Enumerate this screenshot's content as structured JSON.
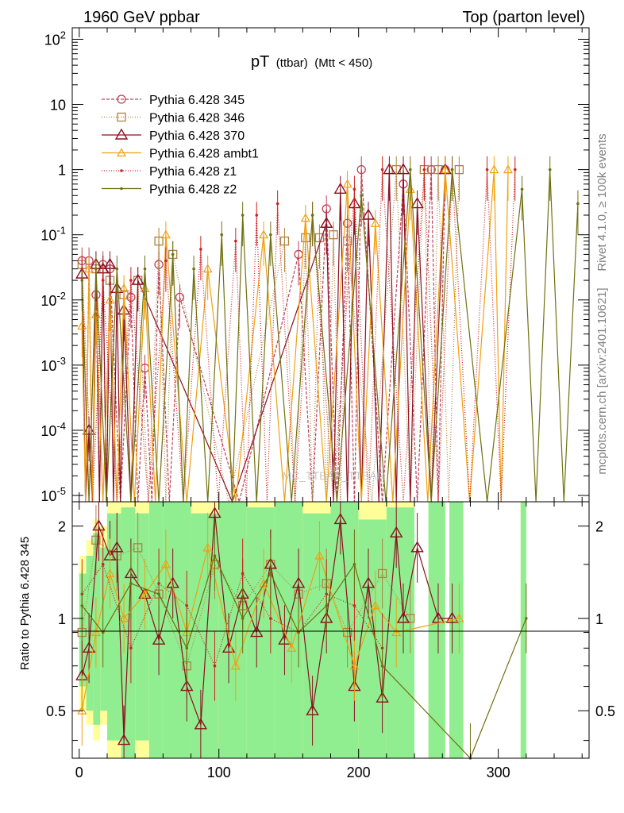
{
  "header": {
    "left": "1960 GeV ppbar",
    "right": "Top (parton level)"
  },
  "title": {
    "main": "pT",
    "sub": "(ttbar)",
    "cut": "(Mtt < 450)"
  },
  "side_labels": {
    "rivet": "Rivet 4.1.0, ≥ 100k events",
    "mcplots": "mcplots.cern.ch [arXiv:2401.10621]"
  },
  "watermark": "MC_TTBAR_TTBAR",
  "ratio_ylabel": "Ratio to Pythia 6.428 345",
  "colors": {
    "p345": "#c0415a",
    "p346": "#b08040",
    "p370": "#8b1020",
    "ambt1": "#f0a010",
    "z1": "#d02020",
    "z2": "#707010",
    "band_green": "#90ee90",
    "band_yellow": "#ffff99"
  },
  "chart_data": {
    "type": "line",
    "x_axis": {
      "range": [
        -5,
        365
      ],
      "ticks": [
        0,
        100,
        200,
        300
      ],
      "tick_labels": [
        "0",
        "100",
        "200",
        "300"
      ]
    },
    "main_panel": {
      "scale": "log",
      "ylim": [
        8e-06,
        150
      ],
      "ticks": [
        1e-05,
        0.0001,
        0.001,
        0.01,
        0.1,
        1,
        10,
        100
      ],
      "tick_labels": [
        "10^-5",
        "10^-4",
        "10^-3",
        "10^-2",
        "10^-1",
        "1",
        "10",
        "10^2"
      ]
    },
    "ratio_panel": {
      "scale": "log",
      "ylim": [
        0.35,
        2.4
      ],
      "ticks": [
        0.5,
        1,
        2
      ],
      "tick_labels": [
        "0.5",
        "1",
        "2"
      ]
    },
    "legend": [
      {
        "label": "Pythia 6.428 345",
        "key": "p345",
        "marker": "circle",
        "dash": "4,2"
      },
      {
        "label": "Pythia 6.428 346",
        "key": "p346",
        "marker": "square",
        "dash": "1,2"
      },
      {
        "label": "Pythia 6.428 370",
        "key": "p370",
        "marker": "triangle",
        "dash": ""
      },
      {
        "label": "Pythia 6.428 ambt1",
        "key": "ambt1",
        "marker": "triangle-small",
        "dash": ""
      },
      {
        "label": "Pythia 6.428 z1",
        "key": "z1",
        "marker": "dot",
        "dash": "1,2"
      },
      {
        "label": "Pythia 6.428 z2",
        "key": "z2",
        "marker": "dot",
        "dash": ""
      }
    ],
    "series": [
      {
        "name": "Pythia 6.428 345",
        "key": "p345",
        "x": [
          2,
          7,
          12,
          17,
          22,
          37,
          47,
          57,
          72,
          157,
          177,
          192,
          202,
          232,
          252,
          262
        ],
        "y": [
          0.04,
          0.04,
          0.012,
          0.035,
          0.03,
          0.011,
          0.0009,
          0.035,
          0.011,
          0.05,
          0.25,
          0.15,
          1,
          0.6,
          1,
          1
        ]
      },
      {
        "name": "Pythia 6.428 346",
        "key": "p346",
        "x": [
          2,
          12,
          22,
          32,
          42,
          57,
          67,
          147,
          162,
          172,
          182,
          192,
          227,
          247,
          257,
          272
        ],
        "y": [
          0.035,
          0.03,
          0.02,
          0.012,
          0.02,
          0.08,
          0.05,
          0.08,
          0.09,
          0.09,
          0.1,
          0.08,
          1,
          1,
          1,
          1
        ]
      },
      {
        "name": "Pythia 6.428 370",
        "key": "p370",
        "x": [
          2,
          7,
          12,
          17,
          22,
          27,
          32,
          42,
          177,
          187,
          197,
          207,
          222,
          232,
          242,
          262
        ],
        "y": [
          0.025,
          0.0001,
          0.035,
          0.03,
          0.035,
          0.015,
          0.007,
          0.02,
          0.15,
          0.5,
          0.3,
          0.2,
          1,
          1,
          0.3,
          1
        ]
      },
      {
        "name": "Pythia 6.428 ambt1",
        "key": "ambt1",
        "x": [
          2,
          7,
          12,
          22,
          32,
          47,
          62,
          92,
          132,
          162,
          192,
          212,
          237,
          262,
          297,
          307
        ],
        "y": [
          0.004,
          0.03,
          0.006,
          0.01,
          0.015,
          0.015,
          0.1,
          0.03,
          0.1,
          0.18,
          0.6,
          0.15,
          0.5,
          1,
          1,
          1
        ]
      },
      {
        "name": "Pythia 6.428 z1",
        "key": "z1",
        "x": [
          2,
          17,
          37,
          62,
          87,
          112,
          127,
          142,
          167,
          197,
          217,
          247,
          267,
          292,
          312
        ],
        "y": [
          0.03,
          0.02,
          0.02,
          0.04,
          0.06,
          0.08,
          0.2,
          0.3,
          0.2,
          0.5,
          1,
          1,
          1,
          1,
          1
        ]
      },
      {
        "name": "Pythia 6.428 z2",
        "key": "z2",
        "x": [
          2,
          12,
          27,
          47,
          67,
          82,
          102,
          117,
          137,
          167,
          202,
          237,
          267,
          317,
          337,
          357
        ],
        "y": [
          0.02,
          0.03,
          0.03,
          0.03,
          0.05,
          0.03,
          0.1,
          0.2,
          0.1,
          0.2,
          0.4,
          1,
          1,
          0.5,
          1,
          0.3
        ]
      }
    ],
    "ratio_series": [
      {
        "name": "Pythia 6.428 346",
        "key": "p346",
        "x": [
          2,
          12,
          27,
          42,
          57,
          77,
          97,
          117,
          137,
          157,
          177,
          192,
          217,
          237
        ],
        "y": [
          0.9,
          1.8,
          1.6,
          1.7,
          1.2,
          0.7,
          1.5,
          1.1,
          1.5,
          1.2,
          1.3,
          0.9,
          1.4,
          1
        ]
      },
      {
        "name": "Pythia 6.428 370",
        "key": "p370",
        "x": [
          2,
          7,
          14,
          22,
          27,
          32,
          37,
          47,
          57,
          67,
          77,
          87,
          97,
          107,
          117,
          127,
          137,
          147,
          157,
          167,
          177,
          187,
          197,
          207,
          217,
          227,
          232,
          242,
          257,
          267
        ],
        "y": [
          0.65,
          0.8,
          2.0,
          1.6,
          1.7,
          0.4,
          1.4,
          1.2,
          0.85,
          1.3,
          0.6,
          0.45,
          2.2,
          0.8,
          1.2,
          0.9,
          1.5,
          0.85,
          1.3,
          0.5,
          1.0,
          2.1,
          0.6,
          1.3,
          0.55,
          1.9,
          1.0,
          1.7,
          1.0,
          1.0
        ]
      },
      {
        "name": "Pythia 6.428 ambt1",
        "key": "ambt1",
        "x": [
          2,
          12,
          22,
          32,
          47,
          62,
          77,
          92,
          112,
          132,
          152,
          172,
          197,
          212,
          227,
          272
        ],
        "y": [
          0.5,
          0.9,
          1.4,
          1.0,
          1.2,
          1.5,
          0.9,
          1.7,
          0.7,
          1.3,
          0.8,
          1.6,
          0.7,
          1.1,
          0.9,
          1.0
        ]
      },
      {
        "name": "Pythia 6.428 z1",
        "key": "z1",
        "x": [
          2,
          17,
          37,
          57,
          77,
          97,
          117,
          137,
          157,
          177,
          197,
          217
        ],
        "y": [
          1.2,
          1.5,
          0.8,
          1.3,
          1.1,
          0.7,
          1.4,
          1.0,
          0.9,
          1.2,
          1.1,
          0.8
        ]
      },
      {
        "name": "Pythia 6.428 z2",
        "key": "z2",
        "x": [
          2,
          17,
          37,
          57,
          77,
          97,
          117,
          137,
          157,
          177,
          197,
          217,
          280,
          320
        ],
        "y": [
          1.1,
          0.9,
          1.3,
          1.2,
          0.8,
          1.6,
          1.0,
          1.4,
          0.9,
          1.1,
          1.5,
          0.7,
          0.35,
          1.0
        ]
      }
    ],
    "ratio_bands": [
      {
        "x0": 0,
        "x1": 5,
        "green": [
          0.6,
          1.4
        ],
        "yellow": [
          0.5,
          1.6
        ]
      },
      {
        "x0": 5,
        "x1": 10,
        "green": [
          0.5,
          1.6
        ],
        "yellow": [
          0.45,
          1.8
        ]
      },
      {
        "x0": 10,
        "x1": 15,
        "green": [
          0.45,
          1.9
        ],
        "yellow": [
          0.4,
          2.1
        ]
      },
      {
        "x0": 15,
        "x1": 20,
        "green": [
          0.5,
          1.7
        ],
        "yellow": [
          0.45,
          2.0
        ]
      },
      {
        "x0": 20,
        "x1": 30,
        "green": [
          0.4,
          2.2
        ],
        "yellow": [
          0.35,
          2.4
        ]
      },
      {
        "x0": 30,
        "x1": 40,
        "green": [
          0.35,
          2.3
        ],
        "yellow": [
          0.35,
          2.4
        ]
      },
      {
        "x0": 40,
        "x1": 50,
        "green": [
          0.4,
          2.2
        ],
        "yellow": [
          0.35,
          2.4
        ]
      },
      {
        "x0": 50,
        "x1": 60,
        "green": [
          0.35,
          2.4
        ],
        "yellow": [
          0.35,
          2.4
        ]
      },
      {
        "x0": 60,
        "x1": 80,
        "green": [
          0.35,
          2.4
        ],
        "yellow": [
          0.35,
          2.4
        ]
      },
      {
        "x0": 80,
        "x1": 100,
        "green": [
          0.35,
          2.2
        ],
        "yellow": [
          0.35,
          2.4
        ]
      },
      {
        "x0": 100,
        "x1": 120,
        "green": [
          0.35,
          2.4
        ],
        "yellow": [
          0.35,
          2.4
        ]
      },
      {
        "x0": 120,
        "x1": 140,
        "green": [
          0.35,
          2.3
        ],
        "yellow": [
          0.35,
          2.4
        ]
      },
      {
        "x0": 140,
        "x1": 160,
        "green": [
          0.35,
          2.4
        ],
        "yellow": [
          0.35,
          2.4
        ]
      },
      {
        "x0": 160,
        "x1": 180,
        "green": [
          0.35,
          2.2
        ],
        "yellow": [
          0.35,
          2.4
        ]
      },
      {
        "x0": 180,
        "x1": 200,
        "green": [
          0.35,
          2.4
        ],
        "yellow": [
          0.35,
          2.4
        ]
      },
      {
        "x0": 200,
        "x1": 220,
        "green": [
          0.35,
          2.1
        ],
        "yellow": [
          0.35,
          2.4
        ]
      },
      {
        "x0": 220,
        "x1": 240,
        "green": [
          0.35,
          2.3
        ],
        "yellow": [
          0.35,
          2.4
        ]
      },
      {
        "x0": 250,
        "x1": 262,
        "green": [
          0.35,
          2.4
        ],
        "yellow": [
          0.35,
          2.4
        ]
      },
      {
        "x0": 265,
        "x1": 275,
        "green": [
          0.35,
          2.4
        ],
        "yellow": [
          0.35,
          2.4
        ]
      },
      {
        "x0": 316,
        "x1": 320,
        "green": [
          0.35,
          2.4
        ],
        "yellow": [
          0.35,
          2.4
        ]
      }
    ]
  }
}
